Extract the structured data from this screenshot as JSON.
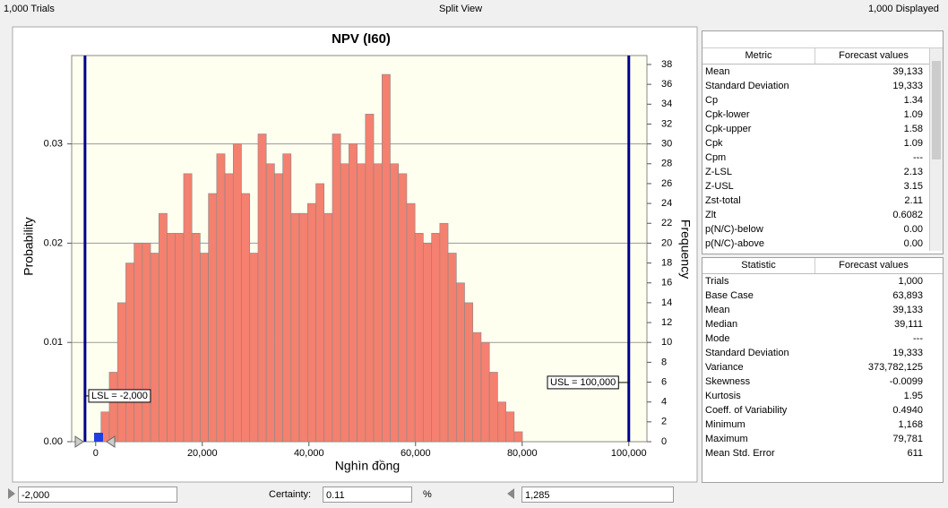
{
  "header": {
    "trials": "1,000 Trials",
    "view": "Split View",
    "displayed": "1,000 Displayed"
  },
  "chart_data": {
    "type": "histogram",
    "title": "NPV (I60)",
    "xlabel": "Nghìn đồng",
    "ylabel": "Probability",
    "y2label": "Frequency",
    "bins": [
      1000,
      2550,
      4100,
      5650,
      7200,
      8750,
      10300,
      11850,
      13400,
      14950,
      16500,
      18050,
      19600,
      21150,
      22700,
      24250,
      25800,
      27350,
      28900,
      30450,
      32000,
      33550,
      35100,
      36650,
      38200,
      39750,
      41300,
      42850,
      44400,
      45950,
      47500,
      49050,
      50600,
      52150,
      53700,
      55250,
      56800,
      58350,
      59900,
      61450,
      63000,
      64550,
      66100,
      67650,
      69200,
      70750,
      72300,
      73850,
      75400,
      76950,
      78500,
      80050
    ],
    "series": [
      {
        "color": "#f4806f",
        "axis": "y2",
        "values": [
          3,
          7,
          14,
          18,
          20,
          20,
          19,
          23,
          21,
          21,
          27,
          21,
          19,
          25,
          29,
          27,
          30,
          25,
          19,
          31,
          28,
          27,
          29,
          23,
          23,
          24,
          26,
          23,
          31,
          28,
          30,
          28,
          33,
          28,
          37,
          28,
          27,
          24,
          21,
          20,
          21,
          22,
          19,
          16,
          14,
          11,
          10,
          7,
          4,
          3,
          1
        ]
      }
    ],
    "xlim": [
      -4500,
      103400
    ],
    "xticks": [
      0,
      {
        "value": 20000,
        "label": "20,000"
      },
      {
        "value": 40000,
        "label": "40,000"
      },
      {
        "value": 60000,
        "label": "60,000"
      },
      {
        "value": 80000,
        "label": "80,000"
      },
      {
        "value": 100000,
        "label": "100,000"
      }
    ],
    "ylim": [
      0,
      0.0389
    ],
    "yticks": [
      {
        "value": 0,
        "label": "0.00"
      },
      {
        "value": 0.01,
        "label": "0.01"
      },
      {
        "value": 0.02,
        "label": "0.02"
      },
      {
        "value": 0.03,
        "label": "0.03"
      }
    ],
    "y2lim": [
      0,
      38.9
    ],
    "y2ticks": [
      0,
      2,
      4,
      6,
      8,
      10,
      12,
      14,
      16,
      18,
      20,
      22,
      24,
      26,
      28,
      30,
      32,
      34,
      36,
      38
    ],
    "grid": true,
    "lsl": {
      "value": -2000,
      "label": "LSL = -2,000"
    },
    "usl": {
      "value": 100000,
      "label": "USL = 100,000"
    }
  },
  "metrics_table": {
    "headers": [
      "Metric",
      "Forecast values"
    ],
    "rows": [
      [
        "Mean",
        "39,133"
      ],
      [
        "Standard Deviation",
        "19,333"
      ],
      [
        "Cp",
        "1.34"
      ],
      [
        "Cpk-lower",
        "1.09"
      ],
      [
        "Cpk-upper",
        "1.58"
      ],
      [
        "Cpk",
        "1.09"
      ],
      [
        "Cpm",
        "---"
      ],
      [
        "Z-LSL",
        "2.13"
      ],
      [
        "Z-USL",
        "3.15"
      ],
      [
        "Zst-total",
        "2.11"
      ],
      [
        "Zlt",
        "0.6082"
      ],
      [
        "p(N/C)-below",
        "0.00"
      ],
      [
        "p(N/C)-above",
        "0.00"
      ]
    ]
  },
  "statistic_table": {
    "headers": [
      "Statistic",
      "Forecast values"
    ],
    "rows": [
      [
        "Trials",
        "1,000"
      ],
      [
        "Base Case",
        "63,893"
      ],
      [
        "Mean",
        "39,133"
      ],
      [
        "Median",
        "39,111"
      ],
      [
        "Mode",
        "---"
      ],
      [
        "Standard Deviation",
        "19,333"
      ],
      [
        "Variance",
        "373,782,125"
      ],
      [
        "Skewness",
        "-0.0099"
      ],
      [
        "Kurtosis",
        "1.95"
      ],
      [
        "Coeff. of Variability",
        "0.4940"
      ],
      [
        "Minimum",
        "1,168"
      ],
      [
        "Maximum",
        "79,781"
      ],
      [
        "Mean Std. Error",
        "611"
      ]
    ]
  },
  "bottom_bar": {
    "left_value": "-2,000",
    "certainty_label": "Certainty:",
    "certainty": "0.11",
    "unit": "%",
    "right_value": "1,285"
  }
}
